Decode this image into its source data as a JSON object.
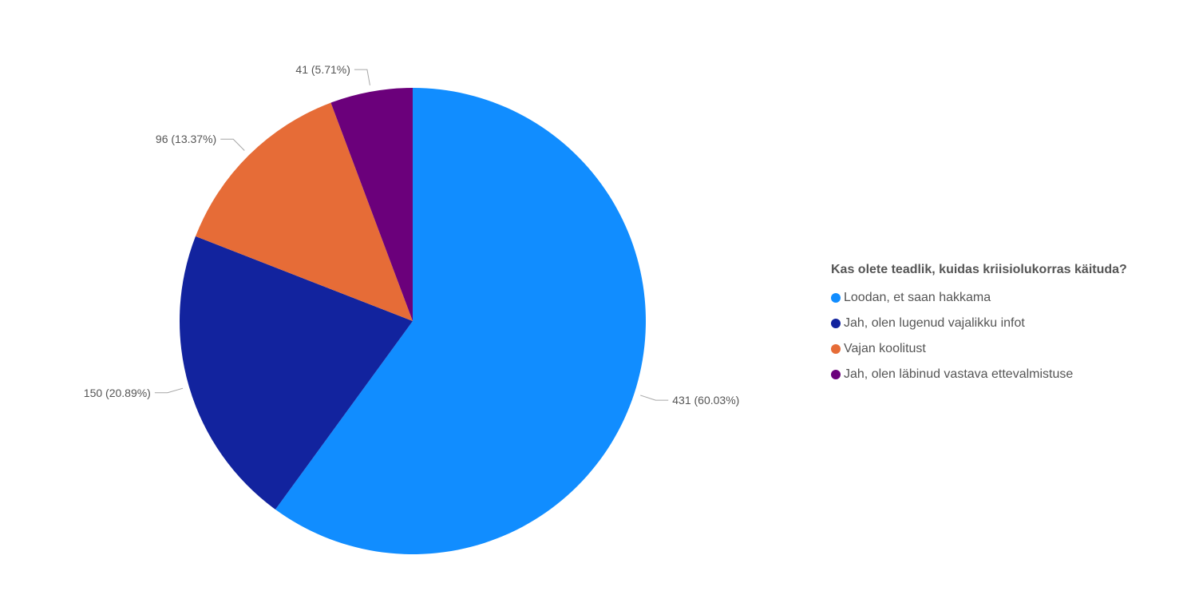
{
  "chart_data": {
    "type": "pie",
    "legend_title": "Kas olete teadlik, kuidas kriisiolukorras käituda?",
    "legend_position": "right",
    "slices": [
      {
        "label": "Loodan, et saan hakkama",
        "value": 431,
        "percent": 60.03,
        "data_label": "431 (60.03%)",
        "color": "#118dff"
      },
      {
        "label": "Jah, olen lugenud vajalikku infot",
        "value": 150,
        "percent": 20.89,
        "data_label": "150 (20.89%)",
        "color": "#12239e"
      },
      {
        "label": "Vajan koolitust",
        "value": 96,
        "percent": 13.37,
        "data_label": "96 (13.37%)",
        "color": "#e66c37"
      },
      {
        "label": "Jah, olen läbinud vastava ettevalmistuse",
        "value": 41,
        "percent": 5.71,
        "data_label": "41 (5.71%)",
        "color": "#6b007b"
      }
    ]
  }
}
